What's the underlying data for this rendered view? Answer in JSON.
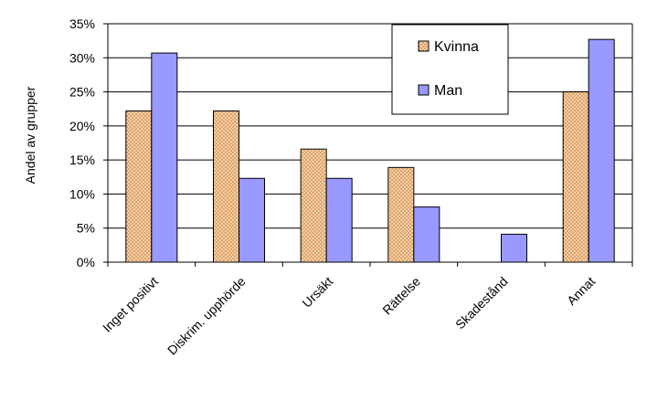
{
  "chart_data": {
    "type": "bar",
    "categories": [
      "Inget positivt",
      "Diskrim. upphörde",
      "Ursäkt",
      "Rättelse",
      "Skadestånd",
      "Annat"
    ],
    "series": [
      {
        "name": "Kvinna",
        "values": [
          22.2,
          22.2,
          16.6,
          13.9,
          0,
          25.0
        ],
        "color": "#FFCC99",
        "pattern": "dotted"
      },
      {
        "name": "Man",
        "values": [
          30.7,
          12.3,
          12.3,
          8.1,
          4.1,
          32.7
        ],
        "color": "#9999FF"
      }
    ],
    "ylabel": "Andel av grupper",
    "ylim": [
      0,
      35
    ],
    "yticks": [
      "0%",
      "5%",
      "10%",
      "15%",
      "20%",
      "25%",
      "30%",
      "35%"
    ],
    "grid": true,
    "legend_position": "top-right"
  }
}
